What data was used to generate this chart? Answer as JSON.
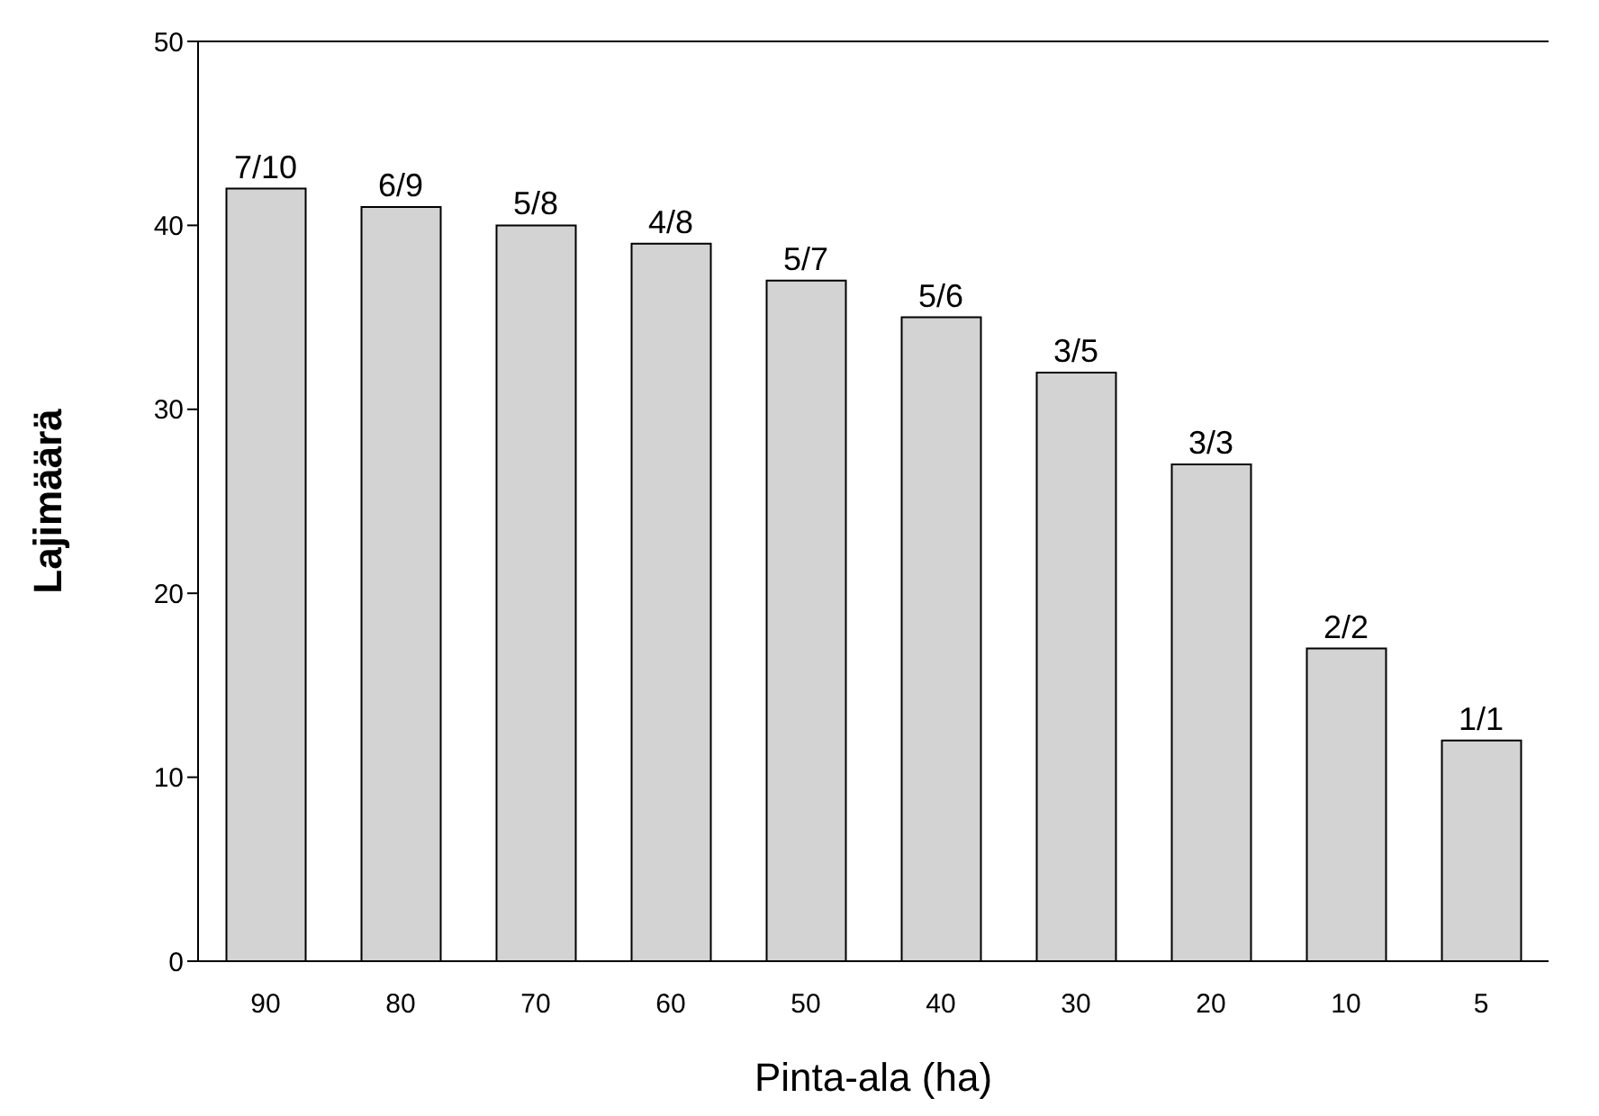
{
  "chart_data": {
    "type": "bar",
    "xlabel": "Pinta-ala (ha)",
    "ylabel": "Lajimäärä",
    "categories": [
      "90",
      "80",
      "70",
      "60",
      "50",
      "40",
      "30",
      "20",
      "10",
      "5"
    ],
    "values": [
      42,
      41,
      40,
      39,
      37,
      35,
      32,
      27,
      17,
      12
    ],
    "annotations": [
      {
        "text": "7/10",
        "x": "90",
        "y": 42
      },
      {
        "text": "6/9",
        "x": "80",
        "y": 41
      },
      {
        "text": "5/8",
        "x": "70",
        "y": 40
      },
      {
        "text": "4/8",
        "x": "60",
        "y": 39
      },
      {
        "text": "5/7",
        "x": "50",
        "y": 37
      },
      {
        "text": "5/6",
        "x": "40",
        "y": 35
      },
      {
        "text": "3/5",
        "x": "30",
        "y": 32
      },
      {
        "text": "3/3",
        "x": "20",
        "y": 27
      },
      {
        "text": "2/2",
        "x": "10",
        "y": 17
      },
      {
        "text": "1/1",
        "x": "5",
        "y": 12
      }
    ],
    "color": "#d3d3d3",
    "ylim": [
      0,
      50
    ],
    "yticks": [
      0,
      10,
      20,
      30,
      40,
      50
    ],
    "grid": false,
    "legend": false
  }
}
